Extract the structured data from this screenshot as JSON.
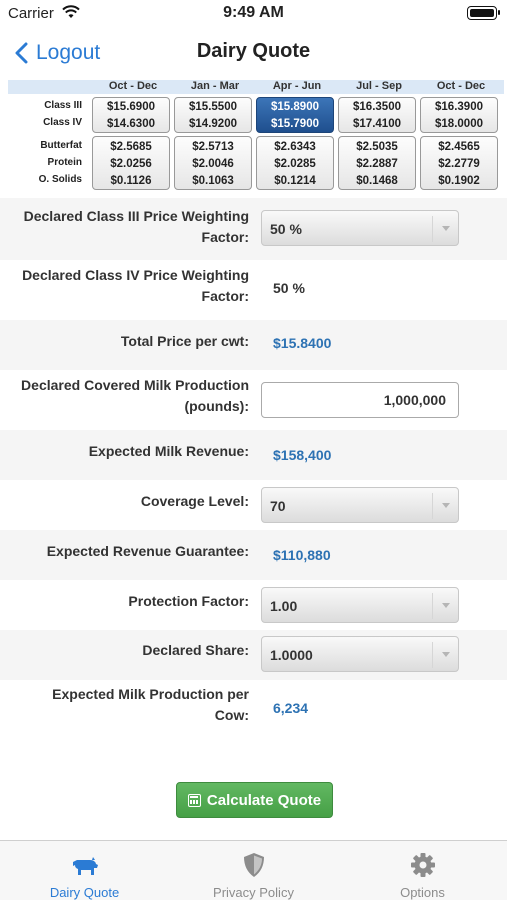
{
  "status": {
    "carrier": "Carrier",
    "time": "9:49 AM"
  },
  "nav": {
    "back_label": "Logout",
    "title": "Dairy Quote"
  },
  "price_grid": {
    "quarters": [
      "Oct - Dec",
      "Jan - Mar",
      "Apr - Jun",
      "Jul - Sep",
      "Oct - Dec"
    ],
    "selected_quarter_index": 2,
    "class_labels": [
      "Class III",
      "Class IV"
    ],
    "component_labels": [
      "Butterfat",
      "Protein",
      "O. Solids"
    ],
    "class_values": [
      [
        "$15.6900",
        "$14.6300"
      ],
      [
        "$15.5500",
        "$14.9200"
      ],
      [
        "$15.8900",
        "$15.7900"
      ],
      [
        "$16.3500",
        "$17.4100"
      ],
      [
        "$16.3900",
        "$18.0000"
      ]
    ],
    "component_values": [
      [
        "$2.5685",
        "$2.0256",
        "$0.1126"
      ],
      [
        "$2.5713",
        "$2.0046",
        "$0.1063"
      ],
      [
        "$2.6343",
        "$2.0285",
        "$0.1214"
      ],
      [
        "$2.5035",
        "$2.2887",
        "$0.1468"
      ],
      [
        "$2.4565",
        "$2.2779",
        "$0.1902"
      ]
    ]
  },
  "form": {
    "class3_weight": {
      "label_line1": "Declared Class III Price Weighting",
      "label_line2": "Factor:",
      "value": "50 %"
    },
    "class4_weight": {
      "label_line1": "Declared Class IV Price Weighting",
      "label_line2": "Factor:",
      "value": "50 %"
    },
    "total_price": {
      "label": "Total Price per cwt:",
      "value": "$15.8400"
    },
    "covered_milk": {
      "label_line1": "Declared Covered Milk Production",
      "label_line2": "(pounds):",
      "value": "1,000,000"
    },
    "expected_revenue": {
      "label": "Expected Milk Revenue:",
      "value": "$158,400"
    },
    "coverage_level": {
      "label": "Coverage Level:",
      "value": "70"
    },
    "revenue_guarantee": {
      "label": "Expected Revenue Guarantee:",
      "value": "$110,880"
    },
    "protection_factor": {
      "label": "Protection Factor:",
      "value": "1.00"
    },
    "declared_share": {
      "label": "Declared Share:",
      "value": "1.0000"
    },
    "production_per_cow": {
      "label_line1": "Expected Milk Production per",
      "label_line2": "Cow:",
      "value": "6,234"
    }
  },
  "calculate_label": "Calculate Quote",
  "tabs": [
    {
      "label": "Dairy Quote",
      "icon": "cow-icon",
      "active": true
    },
    {
      "label": "Privacy Policy",
      "icon": "shield-icon",
      "active": false
    },
    {
      "label": "Options",
      "icon": "gear-icon",
      "active": false
    }
  ],
  "colors": {
    "accent": "#2b7bd4",
    "value_blue": "#2d72b3",
    "button_green": "#4ea64e",
    "selected_cell": "#2a5d9f"
  }
}
